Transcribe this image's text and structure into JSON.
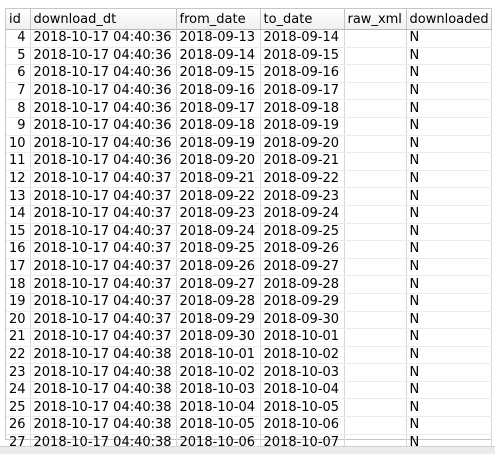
{
  "table": {
    "columns": [
      "id",
      "download_dt",
      "from_date",
      "to_date",
      "raw_xml",
      "downloaded"
    ],
    "rows": [
      {
        "id": "4",
        "download_dt": "2018-10-17 04:40:36",
        "from_date": "2018-09-13",
        "to_date": "2018-09-14",
        "raw_xml": "",
        "downloaded": "N"
      },
      {
        "id": "5",
        "download_dt": "2018-10-17 04:40:36",
        "from_date": "2018-09-14",
        "to_date": "2018-09-15",
        "raw_xml": "",
        "downloaded": "N"
      },
      {
        "id": "6",
        "download_dt": "2018-10-17 04:40:36",
        "from_date": "2018-09-15",
        "to_date": "2018-09-16",
        "raw_xml": "",
        "downloaded": "N"
      },
      {
        "id": "7",
        "download_dt": "2018-10-17 04:40:36",
        "from_date": "2018-09-16",
        "to_date": "2018-09-17",
        "raw_xml": "",
        "downloaded": "N"
      },
      {
        "id": "8",
        "download_dt": "2018-10-17 04:40:36",
        "from_date": "2018-09-17",
        "to_date": "2018-09-18",
        "raw_xml": "",
        "downloaded": "N"
      },
      {
        "id": "9",
        "download_dt": "2018-10-17 04:40:36",
        "from_date": "2018-09-18",
        "to_date": "2018-09-19",
        "raw_xml": "",
        "downloaded": "N"
      },
      {
        "id": "10",
        "download_dt": "2018-10-17 04:40:36",
        "from_date": "2018-09-19",
        "to_date": "2018-09-20",
        "raw_xml": "",
        "downloaded": "N"
      },
      {
        "id": "11",
        "download_dt": "2018-10-17 04:40:36",
        "from_date": "2018-09-20",
        "to_date": "2018-09-21",
        "raw_xml": "",
        "downloaded": "N"
      },
      {
        "id": "12",
        "download_dt": "2018-10-17 04:40:37",
        "from_date": "2018-09-21",
        "to_date": "2018-09-22",
        "raw_xml": "",
        "downloaded": "N"
      },
      {
        "id": "13",
        "download_dt": "2018-10-17 04:40:37",
        "from_date": "2018-09-22",
        "to_date": "2018-09-23",
        "raw_xml": "",
        "downloaded": "N"
      },
      {
        "id": "14",
        "download_dt": "2018-10-17 04:40:37",
        "from_date": "2018-09-23",
        "to_date": "2018-09-24",
        "raw_xml": "",
        "downloaded": "N"
      },
      {
        "id": "15",
        "download_dt": "2018-10-17 04:40:37",
        "from_date": "2018-09-24",
        "to_date": "2018-09-25",
        "raw_xml": "",
        "downloaded": "N"
      },
      {
        "id": "16",
        "download_dt": "2018-10-17 04:40:37",
        "from_date": "2018-09-25",
        "to_date": "2018-09-26",
        "raw_xml": "",
        "downloaded": "N"
      },
      {
        "id": "17",
        "download_dt": "2018-10-17 04:40:37",
        "from_date": "2018-09-26",
        "to_date": "2018-09-27",
        "raw_xml": "",
        "downloaded": "N"
      },
      {
        "id": "18",
        "download_dt": "2018-10-17 04:40:37",
        "from_date": "2018-09-27",
        "to_date": "2018-09-28",
        "raw_xml": "",
        "downloaded": "N"
      },
      {
        "id": "19",
        "download_dt": "2018-10-17 04:40:37",
        "from_date": "2018-09-28",
        "to_date": "2018-09-29",
        "raw_xml": "",
        "downloaded": "N"
      },
      {
        "id": "20",
        "download_dt": "2018-10-17 04:40:37",
        "from_date": "2018-09-29",
        "to_date": "2018-09-30",
        "raw_xml": "",
        "downloaded": "N"
      },
      {
        "id": "21",
        "download_dt": "2018-10-17 04:40:37",
        "from_date": "2018-09-30",
        "to_date": "2018-10-01",
        "raw_xml": "",
        "downloaded": "N"
      },
      {
        "id": "22",
        "download_dt": "2018-10-17 04:40:38",
        "from_date": "2018-10-01",
        "to_date": "2018-10-02",
        "raw_xml": "",
        "downloaded": "N"
      },
      {
        "id": "23",
        "download_dt": "2018-10-17 04:40:38",
        "from_date": "2018-10-02",
        "to_date": "2018-10-03",
        "raw_xml": "",
        "downloaded": "N"
      },
      {
        "id": "24",
        "download_dt": "2018-10-17 04:40:38",
        "from_date": "2018-10-03",
        "to_date": "2018-10-04",
        "raw_xml": "",
        "downloaded": "N"
      },
      {
        "id": "25",
        "download_dt": "2018-10-17 04:40:38",
        "from_date": "2018-10-04",
        "to_date": "2018-10-05",
        "raw_xml": "",
        "downloaded": "N"
      },
      {
        "id": "26",
        "download_dt": "2018-10-17 04:40:38",
        "from_date": "2018-10-05",
        "to_date": "2018-10-06",
        "raw_xml": "",
        "downloaded": "N"
      },
      {
        "id": "27",
        "download_dt": "2018-10-17 04:40:38",
        "from_date": "2018-10-06",
        "to_date": "2018-10-07",
        "raw_xml": "",
        "downloaded": "N"
      }
    ]
  }
}
